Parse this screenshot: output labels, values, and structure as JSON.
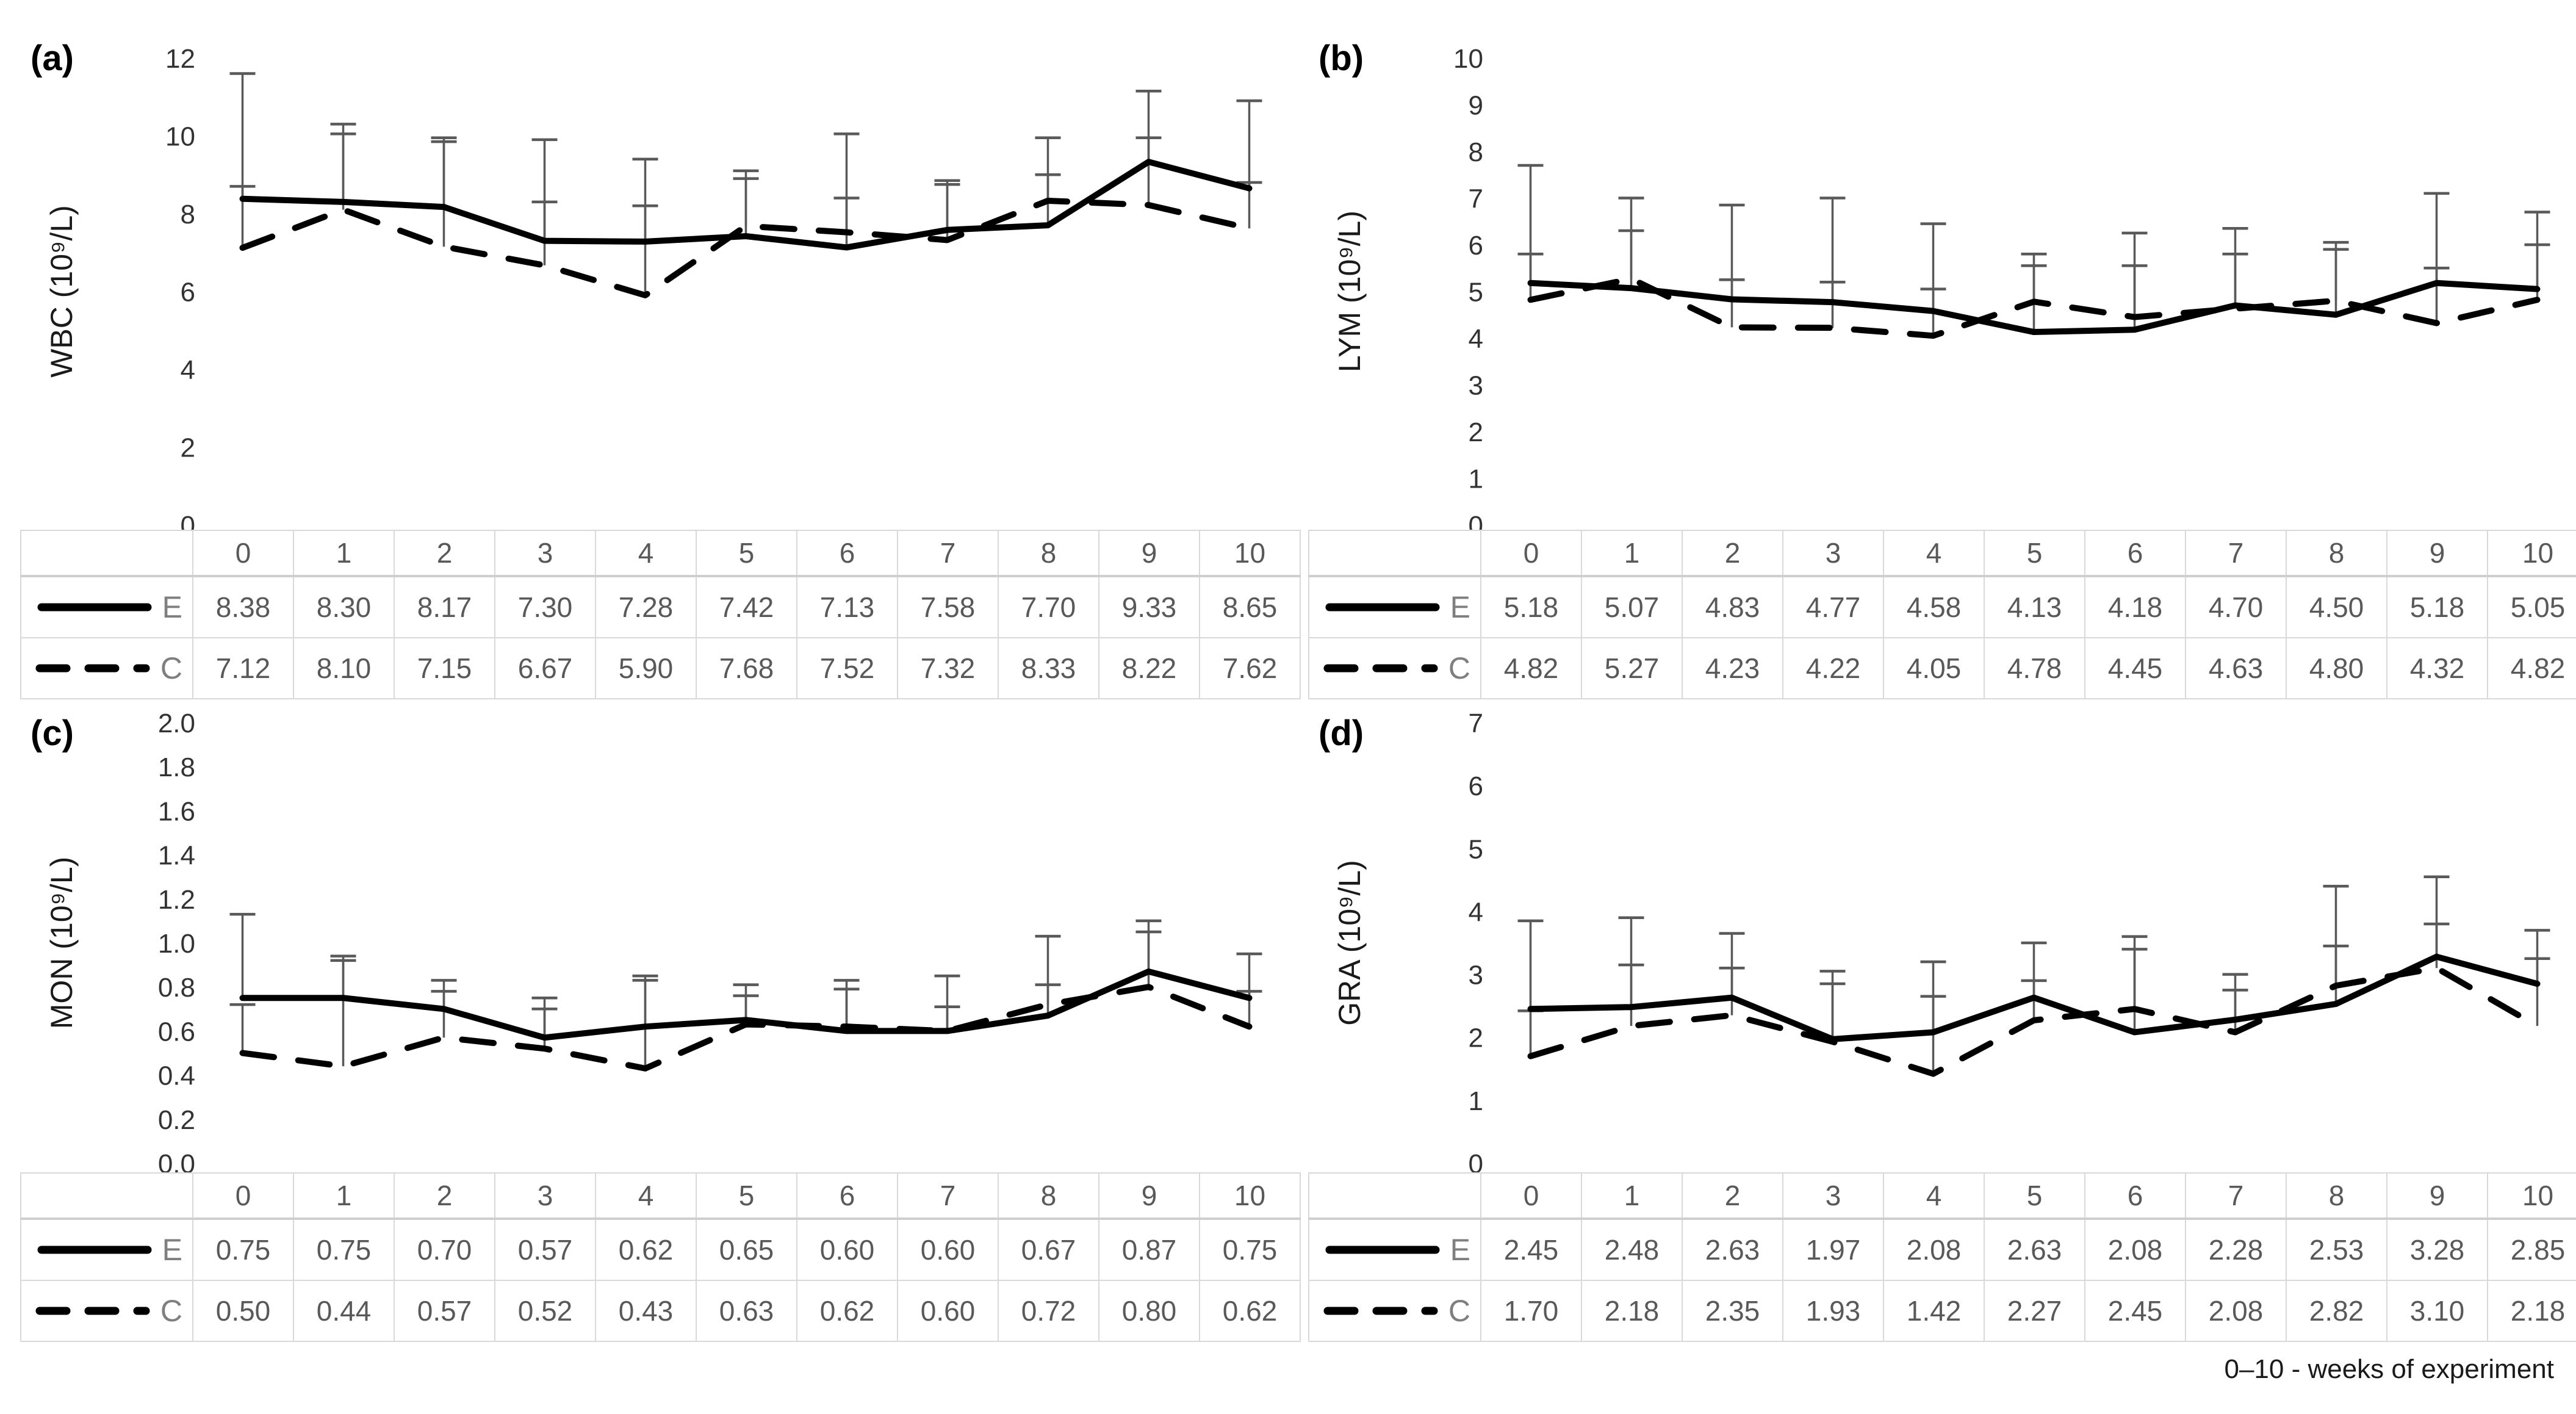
{
  "caption": "0–10 - weeks of experiment",
  "colors": {
    "series_line": "#000000",
    "error_bar": "#595959",
    "table_text": "#595959",
    "table_border": "#d9d9d9",
    "tick_text": "#333333"
  },
  "chart_data": [
    {
      "id": "a",
      "panel_label": "(a)",
      "type": "line",
      "ylabel": "WBC (10⁹/L)",
      "xlabel": "",
      "ylim": [
        0,
        12
      ],
      "ystep": 2,
      "tick_decimals": 0,
      "grid": false,
      "legend_position": "table-left",
      "categories": [
        0,
        1,
        2,
        3,
        4,
        5,
        6,
        7,
        8,
        9,
        10
      ],
      "series": [
        {
          "name": "E",
          "line": "solid",
          "values": [
            8.38,
            8.3,
            8.17,
            7.3,
            7.28,
            7.42,
            7.13,
            7.58,
            7.7,
            9.33,
            8.65
          ],
          "upper_whisker": [
            11.6,
            10.3,
            9.95,
            9.9,
            9.4,
            9.1,
            10.05,
            8.85,
            9.95,
            11.15,
            10.9
          ]
        },
        {
          "name": "C",
          "line": "dashed",
          "values": [
            7.12,
            8.1,
            7.15,
            6.67,
            5.9,
            7.68,
            7.52,
            7.32,
            8.33,
            8.22,
            7.62
          ],
          "upper_whisker": [
            8.7,
            10.05,
            9.85,
            8.3,
            8.2,
            8.9,
            8.4,
            8.75,
            9.0,
            9.95,
            8.8
          ]
        }
      ]
    },
    {
      "id": "b",
      "panel_label": "(b)",
      "type": "line",
      "ylabel": "LYM (10⁹/L)",
      "xlabel": "",
      "ylim": [
        0,
        10
      ],
      "ystep": 1,
      "tick_decimals": 0,
      "grid": false,
      "legend_position": "table-left",
      "categories": [
        0,
        1,
        2,
        3,
        4,
        5,
        6,
        7,
        8,
        9,
        10
      ],
      "series": [
        {
          "name": "E",
          "line": "solid",
          "values": [
            5.18,
            5.07,
            4.83,
            4.77,
            4.58,
            4.13,
            4.18,
            4.7,
            4.5,
            5.18,
            5.05
          ],
          "upper_whisker": [
            7.7,
            7.0,
            6.85,
            7.0,
            6.45,
            5.8,
            6.25,
            6.35,
            6.05,
            7.1,
            6.7
          ]
        },
        {
          "name": "C",
          "line": "dashed",
          "values": [
            4.82,
            5.27,
            4.23,
            4.22,
            4.05,
            4.78,
            4.45,
            4.63,
            4.8,
            4.32,
            4.82
          ],
          "upper_whisker": [
            5.8,
            6.3,
            5.25,
            5.2,
            5.05,
            5.55,
            5.55,
            5.8,
            5.9,
            5.5,
            6.0
          ]
        }
      ]
    },
    {
      "id": "c",
      "panel_label": "(c)",
      "type": "line",
      "ylabel": "MON (10⁹/L)",
      "xlabel": "",
      "ylim": [
        0,
        2.0
      ],
      "ystep": 0.2,
      "tick_decimals": 1,
      "grid": false,
      "legend_position": "table-left",
      "categories": [
        0,
        1,
        2,
        3,
        4,
        5,
        6,
        7,
        8,
        9,
        10
      ],
      "series": [
        {
          "name": "E",
          "line": "solid",
          "values": [
            0.75,
            0.75,
            0.7,
            0.57,
            0.62,
            0.65,
            0.6,
            0.6,
            0.67,
            0.87,
            0.75
          ],
          "upper_whisker": [
            1.13,
            0.94,
            0.83,
            0.75,
            0.85,
            0.81,
            0.83,
            0.85,
            1.03,
            1.1,
            0.95
          ]
        },
        {
          "name": "C",
          "line": "dashed",
          "values": [
            0.5,
            0.44,
            0.57,
            0.52,
            0.43,
            0.63,
            0.62,
            0.6,
            0.72,
            0.8,
            0.62
          ],
          "upper_whisker": [
            0.72,
            0.92,
            0.78,
            0.7,
            0.83,
            0.76,
            0.79,
            0.71,
            0.81,
            1.05,
            0.78
          ]
        }
      ]
    },
    {
      "id": "d",
      "panel_label": "(d)",
      "type": "line",
      "ylabel": "GRA (10⁹/L)",
      "xlabel": "",
      "ylim": [
        0,
        7
      ],
      "ystep": 1,
      "tick_decimals": 0,
      "grid": false,
      "legend_position": "table-left",
      "categories": [
        0,
        1,
        2,
        3,
        4,
        5,
        6,
        7,
        8,
        9,
        10
      ],
      "series": [
        {
          "name": "E",
          "line": "solid",
          "values": [
            2.45,
            2.48,
            2.63,
            1.97,
            2.08,
            2.63,
            2.08,
            2.28,
            2.53,
            3.28,
            2.85
          ],
          "upper_whisker": [
            3.85,
            3.9,
            3.65,
            3.05,
            3.2,
            3.5,
            3.6,
            3.0,
            4.4,
            4.55,
            3.7
          ]
        },
        {
          "name": "C",
          "line": "dashed",
          "values": [
            1.7,
            2.18,
            2.35,
            1.93,
            1.42,
            2.27,
            2.45,
            2.08,
            2.82,
            3.1,
            2.18
          ],
          "upper_whisker": [
            2.42,
            3.15,
            3.1,
            2.85,
            2.65,
            2.9,
            3.4,
            2.75,
            3.45,
            3.8,
            3.25
          ]
        }
      ]
    }
  ]
}
